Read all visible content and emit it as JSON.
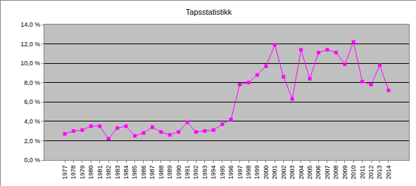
{
  "chart_data": {
    "type": "line",
    "title": "Tapsstatistikk",
    "categories": [
      "1977",
      "1978",
      "1979",
      "1980",
      "1981",
      "1982",
      "1983",
      "1984",
      "1985",
      "1986",
      "1987",
      "1988",
      "1989",
      "1990",
      "1991",
      "1992",
      "1993",
      "1994",
      "1995",
      "1996",
      "1997",
      "1998",
      "1999",
      "2000",
      "2001",
      "2002",
      "2003",
      "2004",
      "2005",
      "2006",
      "2007",
      "2008",
      "2009",
      "2010",
      "2011",
      "2012",
      "2013",
      "2014"
    ],
    "values": [
      2.7,
      3.0,
      3.1,
      3.5,
      3.5,
      2.2,
      3.3,
      3.5,
      2.5,
      2.8,
      3.4,
      2.9,
      2.6,
      2.9,
      3.9,
      2.9,
      3.0,
      3.1,
      3.7,
      4.2,
      7.8,
      8.0,
      8.8,
      9.7,
      11.9,
      8.6,
      6.3,
      11.4,
      8.4,
      11.1,
      11.4,
      11.1,
      9.9,
      12.2,
      8.1,
      7.8,
      9.8,
      7.2
    ],
    "color": "#ff00ff",
    "marker": "square",
    "line_style": "solid",
    "ylim": [
      0,
      14
    ],
    "yticks": [
      {
        "value": 0,
        "label": "0,0 %"
      },
      {
        "value": 2,
        "label": "2,0 %"
      },
      {
        "value": 4,
        "label": "4,0 %"
      },
      {
        "value": 6,
        "label": "6,0 %"
      },
      {
        "value": 8,
        "label": "8,0 %"
      },
      {
        "value": 10,
        "label": "10,0 %"
      },
      {
        "value": 12,
        "label": "12,0 %"
      },
      {
        "value": 14,
        "label": "14,0 %"
      }
    ],
    "grid": true
  }
}
